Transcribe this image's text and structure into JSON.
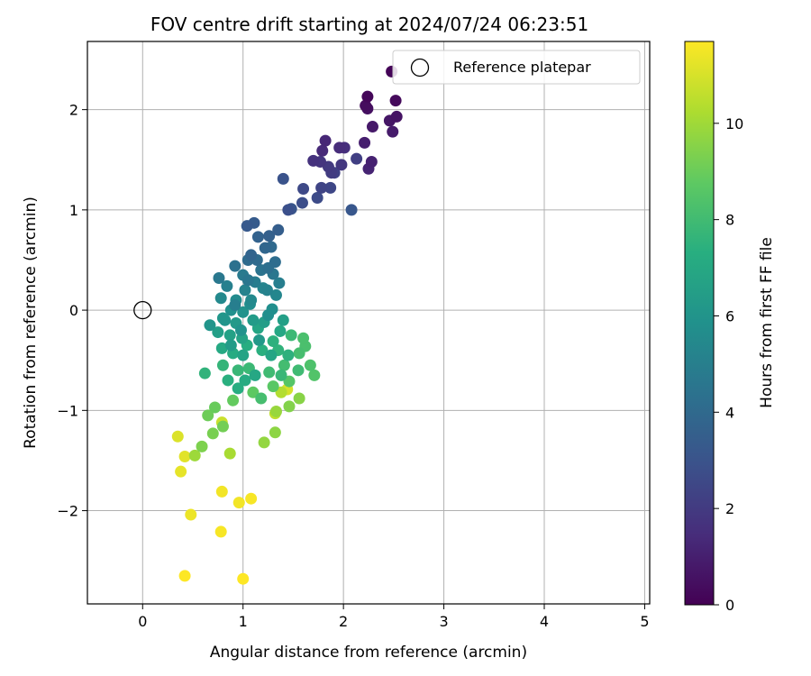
{
  "chart_data": {
    "type": "scatter",
    "title": "FOV centre drift starting at 2024/07/24 06:23:51",
    "xlabel": "Angular distance from reference (arcmin)",
    "ylabel": "Rotation from reference (arcmin)",
    "xlim": [
      -0.55,
      5.05
    ],
    "ylim": [
      -2.93,
      2.68
    ],
    "xticks": [
      0,
      1,
      2,
      3,
      4,
      5
    ],
    "yticks": [
      -2,
      -1,
      0,
      1,
      2
    ],
    "grid": true,
    "legend_position": "top-right",
    "colorbar": {
      "label": "Hours from first FF file",
      "min": 0,
      "max": 11.7,
      "ticks": [
        0,
        2,
        4,
        6,
        8,
        10
      ],
      "colormap": "viridis"
    },
    "reference": {
      "name": "Reference platepar",
      "x": 0,
      "y": 0
    },
    "points": [
      [
        2.48,
        2.38,
        0.1
      ],
      [
        2.24,
        2.13,
        0.2
      ],
      [
        2.52,
        2.09,
        0.3
      ],
      [
        2.22,
        2.04,
        0.4
      ],
      [
        2.24,
        2.01,
        0.5
      ],
      [
        2.53,
        1.93,
        0.6
      ],
      [
        2.46,
        1.89,
        0.7
      ],
      [
        2.29,
        1.83,
        0.8
      ],
      [
        2.49,
        1.78,
        0.9
      ],
      [
        2.21,
        1.67,
        1.0
      ],
      [
        2.28,
        1.48,
        1.1
      ],
      [
        2.25,
        1.41,
        1.2
      ],
      [
        1.82,
        1.69,
        1.3
      ],
      [
        1.79,
        1.59,
        1.4
      ],
      [
        1.96,
        1.62,
        1.5
      ],
      [
        2.01,
        1.62,
        1.6
      ],
      [
        1.7,
        1.49,
        1.7
      ],
      [
        1.77,
        1.48,
        1.8
      ],
      [
        1.98,
        1.45,
        1.9
      ],
      [
        1.85,
        1.43,
        2.0
      ],
      [
        1.88,
        1.37,
        2.1
      ],
      [
        2.13,
        1.51,
        2.2
      ],
      [
        1.91,
        1.37,
        2.3
      ],
      [
        1.78,
        1.22,
        2.4
      ],
      [
        1.87,
        1.22,
        2.5
      ],
      [
        1.6,
        1.21,
        2.6
      ],
      [
        1.74,
        1.12,
        2.7
      ],
      [
        1.59,
        1.07,
        2.8
      ],
      [
        1.45,
        1.0,
        2.9
      ],
      [
        1.4,
        1.31,
        3.0
      ],
      [
        1.48,
        1.01,
        3.1
      ],
      [
        2.08,
        1.0,
        3.2
      ],
      [
        1.04,
        0.84,
        3.3
      ],
      [
        1.11,
        0.87,
        3.4
      ],
      [
        1.35,
        0.8,
        3.5
      ],
      [
        1.26,
        0.74,
        3.6
      ],
      [
        1.15,
        0.73,
        3.7
      ],
      [
        1.08,
        0.55,
        3.8
      ],
      [
        1.22,
        0.62,
        3.9
      ],
      [
        1.28,
        0.63,
        4.0
      ],
      [
        1.05,
        0.5,
        4.1
      ],
      [
        1.32,
        0.48,
        4.2
      ],
      [
        1.25,
        0.42,
        4.3
      ],
      [
        0.92,
        0.44,
        4.4
      ],
      [
        1.18,
        0.4,
        4.5
      ],
      [
        1.3,
        0.36,
        4.6
      ],
      [
        0.76,
        0.32,
        4.7
      ],
      [
        1.0,
        0.35,
        4.8
      ],
      [
        1.12,
        0.28,
        4.9
      ],
      [
        1.36,
        0.27,
        5.0
      ],
      [
        0.84,
        0.24,
        5.1
      ],
      [
        1.02,
        0.2,
        5.2
      ],
      [
        1.2,
        0.22,
        5.3
      ],
      [
        1.33,
        0.15,
        5.4
      ],
      [
        0.78,
        0.12,
        5.5
      ],
      [
        0.93,
        0.1,
        5.6
      ],
      [
        1.07,
        0.06,
        5.7
      ],
      [
        1.29,
        0.01,
        5.8
      ],
      [
        0.88,
        0.0,
        5.9
      ],
      [
        1.0,
        -0.02,
        6.0
      ],
      [
        0.67,
        -0.15,
        6.1
      ],
      [
        0.8,
        -0.08,
        6.2
      ],
      [
        0.93,
        -0.13,
        6.3
      ],
      [
        1.1,
        -0.1,
        6.4
      ],
      [
        1.21,
        -0.12,
        6.5
      ],
      [
        0.75,
        -0.22,
        6.6
      ],
      [
        0.87,
        -0.25,
        6.7
      ],
      [
        0.99,
        -0.28,
        6.8
      ],
      [
        1.15,
        -0.18,
        6.9
      ],
      [
        1.37,
        -0.21,
        7.0
      ],
      [
        0.79,
        -0.38,
        7.1
      ],
      [
        0.9,
        -0.43,
        7.2
      ],
      [
        1.04,
        -0.35,
        7.3
      ],
      [
        1.19,
        -0.4,
        7.4
      ],
      [
        1.3,
        -0.31,
        7.5
      ],
      [
        0.62,
        -0.63,
        7.6
      ],
      [
        0.8,
        -0.55,
        7.7
      ],
      [
        0.95,
        -0.6,
        7.8
      ],
      [
        1.06,
        -0.58,
        7.9
      ],
      [
        1.26,
        -0.62,
        8.0
      ],
      [
        1.41,
        -0.55,
        8.1
      ],
      [
        1.56,
        -0.43,
        8.2
      ],
      [
        1.62,
        -0.36,
        8.3
      ],
      [
        1.67,
        -0.55,
        8.4
      ],
      [
        1.71,
        -0.65,
        8.5
      ],
      [
        1.46,
        -0.71,
        8.6
      ],
      [
        1.3,
        -0.76,
        8.7
      ],
      [
        1.1,
        -0.82,
        8.8
      ],
      [
        0.9,
        -0.9,
        8.9
      ],
      [
        0.72,
        -0.97,
        9.0
      ],
      [
        0.65,
        -1.05,
        9.1
      ],
      [
        0.8,
        -1.16,
        9.2
      ],
      [
        0.7,
        -1.23,
        9.3
      ],
      [
        0.59,
        -1.36,
        9.4
      ],
      [
        1.46,
        -0.96,
        9.5
      ],
      [
        1.56,
        -0.88,
        9.6
      ],
      [
        1.32,
        -1.22,
        9.7
      ],
      [
        1.21,
        -1.32,
        9.8
      ],
      [
        1.33,
        -1.01,
        9.9
      ],
      [
        0.52,
        -1.45,
        10.0
      ],
      [
        0.87,
        -1.43,
        10.2
      ],
      [
        1.38,
        -0.82,
        10.4
      ],
      [
        1.32,
        -1.03,
        10.6
      ],
      [
        0.79,
        -1.12,
        10.8
      ],
      [
        1.44,
        -0.79,
        11.0
      ],
      [
        0.35,
        -1.26,
        11.1
      ],
      [
        0.42,
        -1.46,
        11.2
      ],
      [
        0.38,
        -1.61,
        11.3
      ],
      [
        0.48,
        -2.04,
        11.4
      ],
      [
        0.79,
        -1.81,
        11.5
      ],
      [
        0.96,
        -1.92,
        11.5
      ],
      [
        1.08,
        -1.88,
        11.6
      ],
      [
        0.78,
        -2.21,
        11.6
      ],
      [
        0.42,
        -2.65,
        11.7
      ],
      [
        1.0,
        -2.68,
        11.7
      ],
      [
        0.92,
        0.05,
        5.0
      ],
      [
        1.05,
        0.3,
        4.6
      ],
      [
        1.14,
        0.5,
        4.1
      ],
      [
        1.24,
        0.2,
        5.2
      ],
      [
        0.98,
        -0.2,
        6.0
      ],
      [
        1.16,
        -0.3,
        6.3
      ],
      [
        1.25,
        -0.05,
        5.8
      ],
      [
        1.4,
        -0.1,
        6.6
      ],
      [
        0.85,
        -0.7,
        7.4
      ],
      [
        1.0,
        -0.45,
        6.8
      ],
      [
        1.12,
        -0.65,
        7.0
      ],
      [
        0.95,
        -0.78,
        7.3
      ],
      [
        1.35,
        -0.4,
        7.6
      ],
      [
        1.48,
        -0.25,
        7.9
      ],
      [
        1.55,
        -0.6,
        8.0
      ],
      [
        1.6,
        -0.28,
        8.3
      ],
      [
        1.18,
        -0.88,
        8.2
      ],
      [
        1.28,
        -0.45,
        6.9
      ],
      [
        0.88,
        -0.35,
        6.4
      ],
      [
        1.02,
        -0.7,
        7.2
      ],
      [
        0.82,
        -0.1,
        6.1
      ],
      [
        1.45,
        -0.45,
        7.5
      ],
      [
        1.38,
        -0.65,
        7.8
      ],
      [
        1.08,
        0.1,
        5.5
      ]
    ]
  }
}
